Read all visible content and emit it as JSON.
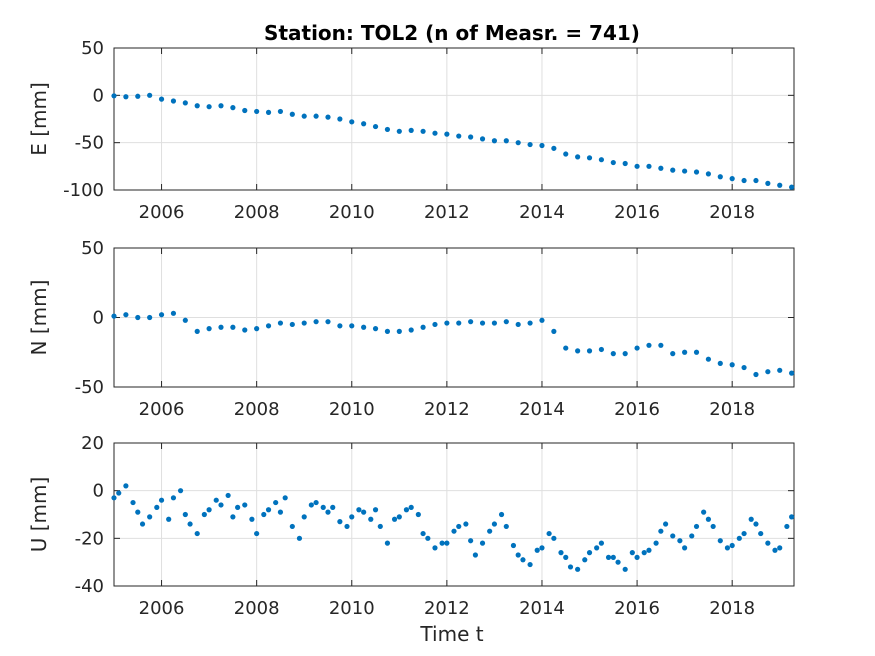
{
  "title": "Station: TOL2 (n of Measr. = 741)",
  "xlabel": "Time t",
  "x_tick_labels": [
    "2006",
    "2008",
    "2010",
    "2012",
    "2014",
    "2016",
    "2018"
  ],
  "marker_color": "#0072BD",
  "chart_data": [
    {
      "type": "scatter",
      "ylabel": "E [mm]",
      "xlim": [
        2005.0,
        2019.3
      ],
      "ylim": [
        -100,
        50
      ],
      "yticks": [
        50,
        0,
        -50,
        -100
      ],
      "grid": true,
      "series": [
        {
          "points": [
            [
              2005.0,
              -0.5
            ],
            [
              2005.25,
              -1.5
            ],
            [
              2005.5,
              -1.0
            ],
            [
              2005.75,
              0.0
            ],
            [
              2006.0,
              -4
            ],
            [
              2006.25,
              -6
            ],
            [
              2006.5,
              -8
            ],
            [
              2006.75,
              -11
            ],
            [
              2007.0,
              -12
            ],
            [
              2007.25,
              -11
            ],
            [
              2007.5,
              -13
            ],
            [
              2007.75,
              -16
            ],
            [
              2008.0,
              -17
            ],
            [
              2008.25,
              -18
            ],
            [
              2008.5,
              -17
            ],
            [
              2008.75,
              -20
            ],
            [
              2009.0,
              -22
            ],
            [
              2009.25,
              -22
            ],
            [
              2009.5,
              -23
            ],
            [
              2009.75,
              -25
            ],
            [
              2010.0,
              -28
            ],
            [
              2010.25,
              -30
            ],
            [
              2010.5,
              -33
            ],
            [
              2010.75,
              -36
            ],
            [
              2011.0,
              -38
            ],
            [
              2011.25,
              -37
            ],
            [
              2011.5,
              -38
            ],
            [
              2011.75,
              -40
            ],
            [
              2012.0,
              -41
            ],
            [
              2012.25,
              -43
            ],
            [
              2012.5,
              -44
            ],
            [
              2012.75,
              -46
            ],
            [
              2013.0,
              -48
            ],
            [
              2013.25,
              -48
            ],
            [
              2013.5,
              -50
            ],
            [
              2013.75,
              -52
            ],
            [
              2014.0,
              -53
            ],
            [
              2014.25,
              -56
            ],
            [
              2014.5,
              -62
            ],
            [
              2014.75,
              -65
            ],
            [
              2015.0,
              -66
            ],
            [
              2015.25,
              -68
            ],
            [
              2015.5,
              -71
            ],
            [
              2015.75,
              -72
            ],
            [
              2016.0,
              -75
            ],
            [
              2016.25,
              -75
            ],
            [
              2016.5,
              -77
            ],
            [
              2016.75,
              -79
            ],
            [
              2017.0,
              -80
            ],
            [
              2017.25,
              -81
            ],
            [
              2017.5,
              -83
            ],
            [
              2017.75,
              -86
            ],
            [
              2018.0,
              -88
            ],
            [
              2018.25,
              -90
            ],
            [
              2018.5,
              -90
            ],
            [
              2018.75,
              -93
            ],
            [
              2019.0,
              -95
            ],
            [
              2019.25,
              -97
            ]
          ]
        }
      ]
    },
    {
      "type": "scatter",
      "ylabel": "N [mm]",
      "xlim": [
        2005.0,
        2019.3
      ],
      "ylim": [
        -50,
        50
      ],
      "yticks": [
        50,
        0,
        -50
      ],
      "grid": true,
      "series": [
        {
          "points": [
            [
              2005.0,
              1
            ],
            [
              2005.25,
              2
            ],
            [
              2005.5,
              0
            ],
            [
              2005.75,
              0
            ],
            [
              2006.0,
              2
            ],
            [
              2006.25,
              3
            ],
            [
              2006.5,
              -2
            ],
            [
              2006.75,
              -10
            ],
            [
              2007.0,
              -8
            ],
            [
              2007.25,
              -7
            ],
            [
              2007.5,
              -7
            ],
            [
              2007.75,
              -9
            ],
            [
              2008.0,
              -8
            ],
            [
              2008.25,
              -6
            ],
            [
              2008.5,
              -4
            ],
            [
              2008.75,
              -5
            ],
            [
              2009.0,
              -4
            ],
            [
              2009.25,
              -3
            ],
            [
              2009.5,
              -3
            ],
            [
              2009.75,
              -6
            ],
            [
              2010.0,
              -6
            ],
            [
              2010.25,
              -7
            ],
            [
              2010.5,
              -8
            ],
            [
              2010.75,
              -10
            ],
            [
              2011.0,
              -10
            ],
            [
              2011.25,
              -9
            ],
            [
              2011.5,
              -7
            ],
            [
              2011.75,
              -5
            ],
            [
              2012.0,
              -4
            ],
            [
              2012.25,
              -4
            ],
            [
              2012.5,
              -3
            ],
            [
              2012.75,
              -4
            ],
            [
              2013.0,
              -4
            ],
            [
              2013.25,
              -3
            ],
            [
              2013.5,
              -5
            ],
            [
              2013.75,
              -4
            ],
            [
              2014.0,
              -2
            ],
            [
              2014.25,
              -10
            ],
            [
              2014.5,
              -22
            ],
            [
              2014.75,
              -24
            ],
            [
              2015.0,
              -24
            ],
            [
              2015.25,
              -23
            ],
            [
              2015.5,
              -26
            ],
            [
              2015.75,
              -26
            ],
            [
              2016.0,
              -22
            ],
            [
              2016.25,
              -20
            ],
            [
              2016.5,
              -20
            ],
            [
              2016.75,
              -26
            ],
            [
              2017.0,
              -25
            ],
            [
              2017.25,
              -25
            ],
            [
              2017.5,
              -30
            ],
            [
              2017.75,
              -33
            ],
            [
              2018.0,
              -34
            ],
            [
              2018.25,
              -36
            ],
            [
              2018.5,
              -41
            ],
            [
              2018.75,
              -39
            ],
            [
              2019.0,
              -38
            ],
            [
              2019.25,
              -40
            ]
          ]
        }
      ]
    },
    {
      "type": "scatter",
      "ylabel": "U [mm]",
      "xlim": [
        2005.0,
        2019.3
      ],
      "ylim": [
        -40,
        20
      ],
      "yticks": [
        20,
        0,
        -20,
        -40
      ],
      "grid": true,
      "series": [
        {
          "points": [
            [
              2005.0,
              -3
            ],
            [
              2005.1,
              -1
            ],
            [
              2005.25,
              2
            ],
            [
              2005.4,
              -5
            ],
            [
              2005.5,
              -9
            ],
            [
              2005.6,
              -14
            ],
            [
              2005.75,
              -11
            ],
            [
              2005.9,
              -7
            ],
            [
              2006.0,
              -4
            ],
            [
              2006.15,
              -12
            ],
            [
              2006.25,
              -3
            ],
            [
              2006.4,
              0
            ],
            [
              2006.5,
              -10
            ],
            [
              2006.6,
              -14
            ],
            [
              2006.75,
              -18
            ],
            [
              2006.9,
              -10
            ],
            [
              2007.0,
              -8
            ],
            [
              2007.15,
              -4
            ],
            [
              2007.25,
              -6
            ],
            [
              2007.4,
              -2
            ],
            [
              2007.5,
              -11
            ],
            [
              2007.6,
              -7
            ],
            [
              2007.75,
              -6
            ],
            [
              2007.9,
              -12
            ],
            [
              2008.0,
              -18
            ],
            [
              2008.15,
              -10
            ],
            [
              2008.25,
              -8
            ],
            [
              2008.4,
              -5
            ],
            [
              2008.5,
              -9
            ],
            [
              2008.6,
              -3
            ],
            [
              2008.75,
              -15
            ],
            [
              2008.9,
              -20
            ],
            [
              2009.0,
              -11
            ],
            [
              2009.15,
              -6
            ],
            [
              2009.25,
              -5
            ],
            [
              2009.4,
              -7
            ],
            [
              2009.5,
              -9
            ],
            [
              2009.6,
              -7
            ],
            [
              2009.75,
              -13
            ],
            [
              2009.9,
              -15
            ],
            [
              2010.0,
              -11
            ],
            [
              2010.15,
              -8
            ],
            [
              2010.25,
              -9
            ],
            [
              2010.4,
              -12
            ],
            [
              2010.5,
              -8
            ],
            [
              2010.6,
              -15
            ],
            [
              2010.75,
              -22
            ],
            [
              2010.9,
              -12
            ],
            [
              2011.0,
              -11
            ],
            [
              2011.15,
              -8
            ],
            [
              2011.25,
              -7
            ],
            [
              2011.4,
              -10
            ],
            [
              2011.5,
              -18
            ],
            [
              2011.6,
              -20
            ],
            [
              2011.75,
              -24
            ],
            [
              2011.9,
              -22
            ],
            [
              2012.0,
              -22
            ],
            [
              2012.15,
              -17
            ],
            [
              2012.25,
              -15
            ],
            [
              2012.4,
              -14
            ],
            [
              2012.5,
              -21
            ],
            [
              2012.6,
              -27
            ],
            [
              2012.75,
              -22
            ],
            [
              2012.9,
              -17
            ],
            [
              2013.0,
              -14
            ],
            [
              2013.15,
              -10
            ],
            [
              2013.25,
              -15
            ],
            [
              2013.4,
              -23
            ],
            [
              2013.5,
              -27
            ],
            [
              2013.6,
              -29
            ],
            [
              2013.75,
              -31
            ],
            [
              2013.9,
              -25
            ],
            [
              2014.0,
              -24
            ],
            [
              2014.15,
              -18
            ],
            [
              2014.25,
              -20
            ],
            [
              2014.4,
              -26
            ],
            [
              2014.5,
              -28
            ],
            [
              2014.6,
              -32
            ],
            [
              2014.75,
              -33
            ],
            [
              2014.9,
              -29
            ],
            [
              2015.0,
              -26
            ],
            [
              2015.15,
              -24
            ],
            [
              2015.25,
              -22
            ],
            [
              2015.4,
              -28
            ],
            [
              2015.5,
              -28
            ],
            [
              2015.6,
              -30
            ],
            [
              2015.75,
              -33
            ],
            [
              2015.9,
              -26
            ],
            [
              2016.0,
              -28
            ],
            [
              2016.15,
              -26
            ],
            [
              2016.25,
              -25
            ],
            [
              2016.4,
              -22
            ],
            [
              2016.5,
              -17
            ],
            [
              2016.6,
              -14
            ],
            [
              2016.75,
              -19
            ],
            [
              2016.9,
              -21
            ],
            [
              2017.0,
              -24
            ],
            [
              2017.15,
              -19
            ],
            [
              2017.25,
              -15
            ],
            [
              2017.4,
              -9
            ],
            [
              2017.5,
              -12
            ],
            [
              2017.6,
              -15
            ],
            [
              2017.75,
              -21
            ],
            [
              2017.9,
              -24
            ],
            [
              2018.0,
              -23
            ],
            [
              2018.15,
              -20
            ],
            [
              2018.25,
              -18
            ],
            [
              2018.4,
              -12
            ],
            [
              2018.5,
              -14
            ],
            [
              2018.6,
              -18
            ],
            [
              2018.75,
              -22
            ],
            [
              2018.9,
              -25
            ],
            [
              2019.0,
              -24
            ],
            [
              2019.15,
              -15
            ],
            [
              2019.25,
              -11
            ]
          ]
        }
      ]
    }
  ]
}
